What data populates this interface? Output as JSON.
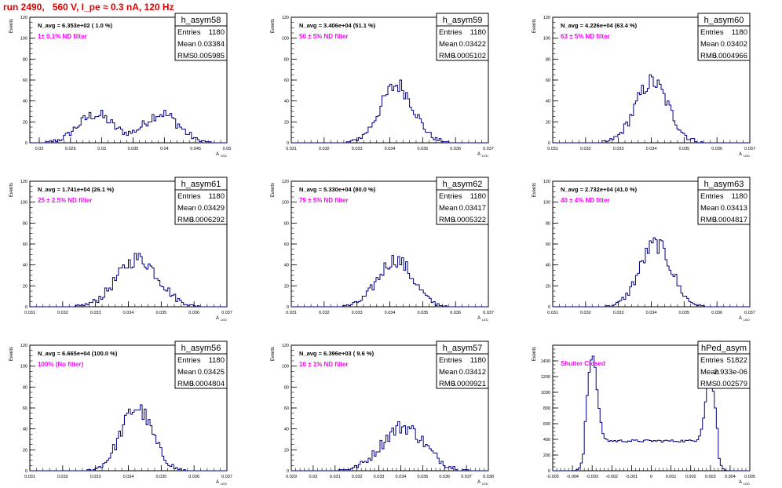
{
  "page_title": "run 2490,   560 V, I_pe ≈ 0.3 nA, 120 Hz",
  "stat_labels": {
    "entries": "Entries",
    "mean": "Mean",
    "rms": "RMS"
  },
  "y_axis_label": "Events",
  "x_axis_label": "A",
  "x_axis_subscript": "LED",
  "chart_data": [
    {
      "type": "histogram",
      "name": "h_asym58",
      "navg": "N_avg = 6.353e+02 ( 1.0 %)",
      "filter": "1± 0.1% ND filter",
      "entries": "1180",
      "mean": "0.03384",
      "rms": "0.005985",
      "xlim": [
        0.0185,
        0.05
      ],
      "ylim": [
        0,
        120
      ],
      "xticks": [
        "0.02",
        "0.025",
        "0.03",
        "0.035",
        "0.04",
        "0.045",
        "0.05"
      ],
      "yticks": [
        "0",
        "20",
        "40",
        "60",
        "80",
        "100",
        "120"
      ],
      "peaks": [
        {
          "mu": 0.029,
          "sigma": 0.0028,
          "amp": 27
        },
        {
          "mu": 0.0395,
          "sigma": 0.0028,
          "amp": 28
        }
      ]
    },
    {
      "type": "histogram",
      "name": "h_asym59",
      "navg": "N_avg = 3.406e+04 (51.1 %)",
      "filter": "50 ± 5% ND filter",
      "entries": "1180",
      "mean": "0.03422",
      "rms": "0.0005102",
      "xlim": [
        0.031,
        0.037
      ],
      "ylim": [
        0,
        120
      ],
      "xticks": [
        "0.031",
        "0.032",
        "0.033",
        "0.034",
        "0.035",
        "0.036",
        "0.037"
      ],
      "yticks": [
        "0",
        "20",
        "40",
        "60",
        "80",
        "100",
        "120"
      ],
      "peaks": [
        {
          "mu": 0.03422,
          "sigma": 0.00051,
          "amp": 55
        }
      ]
    },
    {
      "type": "histogram",
      "name": "h_asym60",
      "navg": "N_avg = 4.226e+04 (63.4 %)",
      "filter": "63 ± 5% ND filter",
      "entries": "1180",
      "mean": "0.03402",
      "rms": "0.0004966",
      "xlim": [
        0.031,
        0.037
      ],
      "ylim": [
        0,
        120
      ],
      "xticks": [
        "0.031",
        "0.032",
        "0.033",
        "0.034",
        "0.035",
        "0.036",
        "0.037"
      ],
      "yticks": [
        "0",
        "20",
        "40",
        "60",
        "80",
        "100",
        "120"
      ],
      "peaks": [
        {
          "mu": 0.03402,
          "sigma": 0.0005,
          "amp": 58
        }
      ]
    },
    {
      "type": "histogram",
      "name": "h_asym61",
      "navg": "N_avg = 1.741e+04 (26.1 %)",
      "filter": "25 ± 2.5% ND filter",
      "entries": "1180",
      "mean": "0.03429",
      "rms": "0.0006292",
      "xlim": [
        0.031,
        0.037
      ],
      "ylim": [
        0,
        120
      ],
      "xticks": [
        "0.031",
        "0.032",
        "0.033",
        "0.034",
        "0.035",
        "0.036",
        "0.037"
      ],
      "yticks": [
        "0",
        "20",
        "40",
        "60",
        "80",
        "100",
        "120"
      ],
      "peaks": [
        {
          "mu": 0.03429,
          "sigma": 0.00063,
          "amp": 46
        }
      ]
    },
    {
      "type": "histogram",
      "name": "h_asym62",
      "navg": "N_avg = 5.330e+04 (80.0 %)",
      "filter": "79 ± 5% ND filter",
      "entries": "1180",
      "mean": "0.03417",
      "rms": "0.0005322",
      "xlim": [
        0.031,
        0.037
      ],
      "ylim": [
        0,
        120
      ],
      "xticks": [
        "0.031",
        "0.032",
        "0.033",
        "0.034",
        "0.035",
        "0.036",
        "0.037"
      ],
      "yticks": [
        "0",
        "20",
        "40",
        "60",
        "80",
        "100",
        "120"
      ],
      "peaks": [
        {
          "mu": 0.03417,
          "sigma": 0.00053,
          "amp": 45
        }
      ]
    },
    {
      "type": "histogram",
      "name": "h_asym63",
      "navg": "N_avg = 2.732e+04 (41.0 %)",
      "filter": "40 ± 4% ND filter",
      "entries": "1180",
      "mean": "0.03413",
      "rms": "0.0004817",
      "xlim": [
        0.031,
        0.037
      ],
      "ylim": [
        0,
        120
      ],
      "xticks": [
        "0.031",
        "0.032",
        "0.033",
        "0.034",
        "0.035",
        "0.036",
        "0.037"
      ],
      "yticks": [
        "0",
        "20",
        "40",
        "60",
        "80",
        "100",
        "120"
      ],
      "peaks": [
        {
          "mu": 0.03413,
          "sigma": 0.00048,
          "amp": 60
        }
      ]
    },
    {
      "type": "histogram",
      "name": "h_asym56",
      "navg": "N_avg = 6.665e+04 (100.0 %)",
      "filter": "100% (No filter)",
      "entries": "1180",
      "mean": "0.03425",
      "rms": "0.0004804",
      "xlim": [
        0.031,
        0.037
      ],
      "ylim": [
        0,
        120
      ],
      "xticks": [
        "0.031",
        "0.032",
        "0.033",
        "0.034",
        "0.035",
        "0.036",
        "0.037"
      ],
      "yticks": [
        "0",
        "20",
        "40",
        "60",
        "80",
        "100",
        "120"
      ],
      "peaks": [
        {
          "mu": 0.03425,
          "sigma": 0.00048,
          "amp": 60
        }
      ]
    },
    {
      "type": "histogram",
      "name": "h_asym57",
      "navg": "N_avg = 6.396e+03 ( 9.6 %)",
      "filter": "10 ± 1% ND filter",
      "entries": "1180",
      "mean": "0.03412",
      "rms": "0.0009921",
      "xlim": [
        0.029,
        0.038
      ],
      "ylim": [
        0,
        120
      ],
      "xticks": [
        "0.029",
        "0.03",
        "0.031",
        "0.032",
        "0.033",
        "0.034",
        "0.035",
        "0.036",
        "0.037",
        "0.038"
      ],
      "yticks": [
        "0",
        "20",
        "40",
        "60",
        "80",
        "100",
        "120"
      ],
      "peaks": [
        {
          "mu": 0.03412,
          "sigma": 0.00099,
          "amp": 42
        }
      ]
    },
    {
      "type": "histogram",
      "name": "hPed_asym",
      "navg": "",
      "filter": "Shutter Closed",
      "entries": "51822",
      "mean": "2.933e-06",
      "rms": "0.002579",
      "xlim": [
        -0.005,
        0.005
      ],
      "ylim": [
        0,
        1600
      ],
      "xticks": [
        "-0.005",
        "-0.004",
        "-0.003",
        "-0.002",
        "-0.001",
        "0",
        "0.001",
        "0.002",
        "0.003",
        "0.004",
        "0.005"
      ],
      "yticks": [
        "0",
        "200",
        "400",
        "600",
        "800",
        "1000",
        "1200",
        "1400"
      ],
      "peaks": [
        {
          "mu": -0.003,
          "sigma": 0.00025,
          "amp": 1100
        },
        {
          "mu": 0.003,
          "sigma": 0.00025,
          "amp": 820
        }
      ],
      "baseline": {
        "lo": -0.0034,
        "hi": 0.0034,
        "level": 380
      }
    }
  ]
}
